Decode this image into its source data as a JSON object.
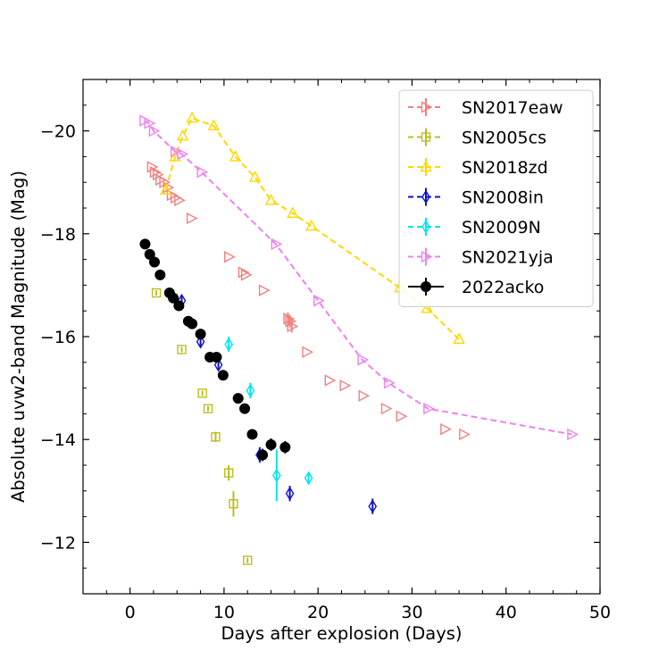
{
  "chart_data": {
    "type": "scatter",
    "title": "",
    "xlabel": "Days after explosion (Days)",
    "ylabel": "Absolute uvw2-band Magnitude (Mag)",
    "xlim": [
      -5,
      50
    ],
    "ylim": [
      -21,
      -11
    ],
    "y_inverted": true,
    "grid": false,
    "legend_position": "top-right",
    "x_ticks": [
      0,
      10,
      20,
      30,
      40,
      50
    ],
    "x_tick_labels": [
      "0",
      "10",
      "20",
      "30",
      "40",
      "50"
    ],
    "y_ticks": [
      -20,
      -18,
      -16,
      -14,
      -12
    ],
    "y_tick_labels": [
      "−20",
      "−18",
      "−16",
      "−14",
      "−12"
    ],
    "series": [
      {
        "name": "SN2017eaw",
        "color": "#f08080",
        "marker": "tri-right",
        "line": false,
        "x": [
          2.3,
          2.6,
          2.9,
          3.2,
          3.6,
          4.0,
          4.4,
          4.8,
          5.2,
          6.5,
          10.5,
          12.0,
          12.3,
          14.2,
          16.8,
          17.0,
          17.2,
          18.8,
          21.2,
          22.8,
          24.8,
          27.2,
          28.8,
          33.5,
          35.5
        ],
        "y": [
          -19.3,
          -19.2,
          -19.15,
          -19.05,
          -19.0,
          -18.9,
          -18.75,
          -18.7,
          -18.65,
          -18.3,
          -17.55,
          -17.25,
          -17.2,
          -16.9,
          -16.35,
          -16.3,
          -16.2,
          -15.7,
          -15.15,
          -15.05,
          -14.85,
          -14.6,
          -14.45,
          -14.2,
          -14.1
        ],
        "yerr": [
          0,
          0,
          0,
          0,
          0,
          0,
          0,
          0,
          0,
          0,
          0,
          0,
          0,
          0,
          0.12,
          0.12,
          0.12,
          0,
          0,
          0,
          0,
          0,
          0,
          0,
          0
        ]
      },
      {
        "name": "SN2005cs",
        "color": "#bcbd22",
        "marker": "square",
        "line": false,
        "x": [
          2.8,
          5.5,
          7.7,
          8.3,
          9.1,
          10.5,
          11.0,
          12.5
        ],
        "y": [
          -16.85,
          -15.75,
          -14.9,
          -14.6,
          -14.05,
          -13.35,
          -12.75,
          -11.65
        ],
        "yerr": [
          0.05,
          0.05,
          0.05,
          0.05,
          0.1,
          0.15,
          0.25,
          0.05
        ]
      },
      {
        "name": "SN2018zd",
        "color": "#ffd700",
        "marker": "triangle-up",
        "line": true,
        "x": [
          3.8,
          4.8,
          5.6,
          6.6,
          8.9,
          11.2,
          13.3,
          15.0,
          17.3,
          19.3,
          28.7,
          31.6,
          35.0
        ],
        "y": [
          -18.85,
          -19.5,
          -19.9,
          -20.25,
          -20.1,
          -19.5,
          -19.1,
          -18.65,
          -18.4,
          -18.15,
          -16.95,
          -16.55,
          -15.95
        ],
        "yerr": [
          0,
          0,
          0,
          0,
          0,
          0,
          0,
          0,
          0,
          0,
          0,
          0,
          0
        ]
      },
      {
        "name": "SN2008in",
        "color": "#1010cc",
        "marker": "diamond",
        "line": false,
        "x": [
          5.5,
          7.5,
          9.4,
          13.8,
          17.0,
          25.8
        ],
        "y": [
          -16.7,
          -15.9,
          -15.45,
          -13.7,
          -12.95,
          -12.7
        ],
        "yerr": [
          0.1,
          0.1,
          0.1,
          0.15,
          0.15,
          0.15
        ]
      },
      {
        "name": "SN2009N",
        "color": "#00e5ee",
        "marker": "diamond",
        "line": false,
        "x": [
          10.5,
          12.8,
          15.6,
          19.0
        ],
        "y": [
          -15.85,
          -14.95,
          -13.3,
          -13.25
        ],
        "yerr": [
          0.15,
          0.15,
          0.5,
          0.1
        ]
      },
      {
        "name": "SN2021yja",
        "color": "#ee82ee",
        "marker": "tri-right",
        "line": true,
        "x": [
          1.5,
          2.0,
          2.5,
          4.8,
          5.5,
          7.6,
          15.5,
          20.0,
          24.7,
          27.5,
          31.7,
          47.0
        ],
        "y": [
          -20.2,
          -20.15,
          -20.0,
          -19.6,
          -19.55,
          -19.2,
          -17.8,
          -16.7,
          -15.55,
          -15.1,
          -14.6,
          -14.1
        ],
        "yerr": [
          0,
          0,
          0,
          0,
          0,
          0,
          0,
          0,
          0,
          0,
          0,
          0
        ]
      },
      {
        "name": "2022acko",
        "color": "#000000",
        "marker": "circle",
        "line": false,
        "x": [
          1.6,
          2.1,
          2.6,
          3.2,
          4.2,
          4.6,
          5.2,
          6.2,
          6.6,
          7.5,
          8.5,
          9.2,
          9.9,
          11.5,
          12.2,
          13.0,
          14.1,
          15.0,
          16.5
        ],
        "y": [
          -17.8,
          -17.6,
          -17.45,
          -17.2,
          -16.85,
          -16.75,
          -16.6,
          -16.3,
          -16.25,
          -16.05,
          -15.6,
          -15.6,
          -15.25,
          -14.8,
          -14.6,
          -14.1,
          -13.7,
          -13.9,
          -13.85
        ],
        "yerr": [
          0.05,
          0.05,
          0.05,
          0.05,
          0.05,
          0.05,
          0.05,
          0.05,
          0.05,
          0.05,
          0.05,
          0.05,
          0.05,
          0.05,
          0.05,
          0.05,
          0.12,
          0.12,
          0.12
        ]
      }
    ]
  }
}
